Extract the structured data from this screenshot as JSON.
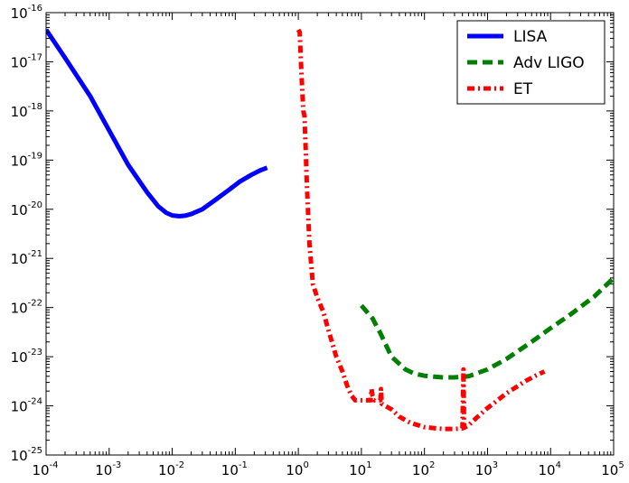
{
  "chart_data": {
    "type": "line",
    "title": "",
    "xlabel": "",
    "ylabel": "",
    "x_scale": "log",
    "y_scale": "log",
    "xlim": [
      0.0001,
      100000
    ],
    "ylim": [
      1e-25,
      1e-16
    ],
    "grid": false,
    "legend_position": "top-right",
    "x_ticks": [
      {
        "base": "10",
        "exp": "-4",
        "value": 0.0001
      },
      {
        "base": "10",
        "exp": "-3",
        "value": 0.001
      },
      {
        "base": "10",
        "exp": "-2",
        "value": 0.01
      },
      {
        "base": "10",
        "exp": "-1",
        "value": 0.1
      },
      {
        "base": "10",
        "exp": "0",
        "value": 1
      },
      {
        "base": "10",
        "exp": "1",
        "value": 10
      },
      {
        "base": "10",
        "exp": "2",
        "value": 100
      },
      {
        "base": "10",
        "exp": "3",
        "value": 1000
      },
      {
        "base": "10",
        "exp": "4",
        "value": 10000
      },
      {
        "base": "10",
        "exp": "5",
        "value": 100000
      }
    ],
    "y_ticks": [
      {
        "base": "10",
        "exp": "-25",
        "value": 1e-25
      },
      {
        "base": "10",
        "exp": "-24",
        "value": 1e-24
      },
      {
        "base": "10",
        "exp": "-23",
        "value": 1e-23
      },
      {
        "base": "10",
        "exp": "-22",
        "value": 1e-22
      },
      {
        "base": "10",
        "exp": "-21",
        "value": 1e-21
      },
      {
        "base": "10",
        "exp": "-20",
        "value": 1e-20
      },
      {
        "base": "10",
        "exp": "-19",
        "value": 1e-19
      },
      {
        "base": "10",
        "exp": "-18",
        "value": 1e-18
      },
      {
        "base": "10",
        "exp": "-17",
        "value": 1e-17
      },
      {
        "base": "10",
        "exp": "-16",
        "value": 1e-16
      }
    ],
    "series": [
      {
        "name": "LISA",
        "color": "#0000ff",
        "style": "solid",
        "x": [
          0.0001,
          0.0002,
          0.0005,
          0.001,
          0.002,
          0.004,
          0.006,
          0.008,
          0.01,
          0.013,
          0.016,
          0.02,
          0.03,
          0.05,
          0.08,
          0.12,
          0.18,
          0.25,
          0.32
        ],
        "y": [
          4.5e-17,
          1.2e-17,
          2e-18,
          4e-19,
          8e-20,
          2.2e-20,
          1.15e-20,
          8.5e-21,
          7.5e-21,
          7.2e-21,
          7.4e-21,
          8e-21,
          1e-20,
          1.6e-20,
          2.5e-20,
          3.7e-20,
          5e-20,
          6.2e-20,
          7e-20
        ]
      },
      {
        "name": "Adv LIGO",
        "color": "#008000",
        "style": "dashed",
        "x": [
          10,
          15,
          20,
          30,
          50,
          70,
          100,
          150,
          200,
          300,
          500,
          1000,
          2000,
          5000,
          10000,
          20000,
          50000,
          100000
        ],
        "y": [
          1.1e-22,
          6e-23,
          3e-23,
          1e-23,
          5.5e-24,
          4.5e-24,
          4.1e-24,
          3.9e-24,
          3.8e-24,
          3.8e-24,
          4e-24,
          5.5e-24,
          9e-24,
          2e-23,
          3.8e-23,
          7e-23,
          1.7e-22,
          4e-22
        ]
      },
      {
        "name": "ET",
        "color": "#ff0000",
        "style": "dashdot",
        "x": [
          1.0,
          1.05,
          1.1,
          1.15,
          1.2,
          1.25,
          1.3,
          1.35,
          1.4,
          1.5,
          1.7,
          2,
          2.5,
          3,
          4,
          5,
          6,
          7,
          8,
          10,
          12,
          14,
          14.5,
          15,
          16,
          18,
          20,
          20.5,
          21,
          24,
          30,
          40,
          60,
          100,
          150,
          200,
          300,
          400,
          415,
          420,
          425,
          430,
          500,
          700,
          1000,
          2000,
          4000,
          6000,
          8000
        ],
        "y": [
          4.5e-17,
          4e-17,
          1e-17,
          3e-18,
          1e-18,
          8e-19,
          2e-19,
          5e-20,
          1.5e-20,
          2e-21,
          3e-22,
          1.6e-22,
          8e-23,
          3.5e-23,
          1e-23,
          5e-24,
          2.5e-24,
          1.6e-24,
          1.3e-24,
          1.3e-24,
          1.3e-24,
          1.3e-24,
          2.2e-24,
          1.6e-24,
          1.3e-24,
          1.3e-24,
          1.3e-24,
          2.2e-24,
          1.1e-24,
          1e-24,
          8.5e-25,
          6e-25,
          4.5e-25,
          3.7e-25,
          3.5e-25,
          3.4e-25,
          3.4e-25,
          3.5e-25,
          5.5e-24,
          1.5e-24,
          4.5e-25,
          3.6e-25,
          4e-25,
          6e-25,
          9e-25,
          1.8e-24,
          3.2e-24,
          4.2e-24,
          5e-24
        ]
      }
    ]
  }
}
